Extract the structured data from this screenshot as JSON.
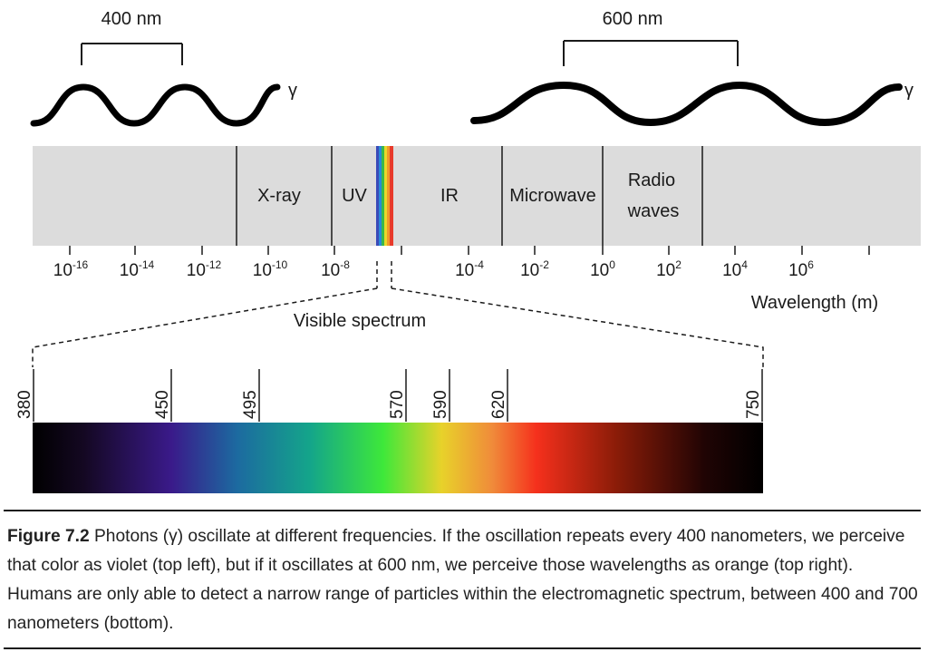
{
  "top_left": {
    "span_label": "400 nm",
    "wave_label": "γ"
  },
  "top_right": {
    "span_label": "600 nm",
    "wave_label": "γ"
  },
  "bands": [
    "X-ray",
    "UV",
    "IR",
    "Microwave",
    "Radio",
    "waves"
  ],
  "ticks": [
    {
      "base": "10",
      "exp": "-16"
    },
    {
      "base": "10",
      "exp": "-14"
    },
    {
      "base": "10",
      "exp": "-12"
    },
    {
      "base": "10",
      "exp": "-10"
    },
    {
      "base": "10",
      "exp": "-8"
    },
    {
      "base": "10",
      "exp": "-4"
    },
    {
      "base": "10",
      "exp": "-2"
    },
    {
      "base": "10",
      "exp": "0"
    },
    {
      "base": "10",
      "exp": "2"
    },
    {
      "base": "10",
      "exp": "4"
    },
    {
      "base": "10",
      "exp": "6"
    }
  ],
  "axis_label": "Wavelength (m)",
  "visible_label": "Visible spectrum",
  "visible_ticks": [
    "380",
    "450",
    "495",
    "570",
    "590",
    "620",
    "750"
  ],
  "colors": {
    "band_background": "#dcdcdc",
    "line": "#1a1a1a",
    "spectrum": [
      "#000000",
      "#1a0a2e",
      "#3a1a8a",
      "#1c6aa0",
      "#14a58a",
      "#3ee83a",
      "#e8d22a",
      "#f08a3a",
      "#f5301c",
      "#8a1c08",
      "#000000"
    ]
  },
  "caption": {
    "label": "Figure 7.2",
    "text": " Photons (γ) oscillate at different frequencies. If the oscillation repeats every 400 nanometers, we perceive that color as violet (top left), but if it oscillates at 600 nm, we perceive those wavelengths as orange (top right). Humans are only able to detect a narrow range of particles within the electromagnetic spectrum, between 400 and 700 nanometers (bottom)."
  }
}
